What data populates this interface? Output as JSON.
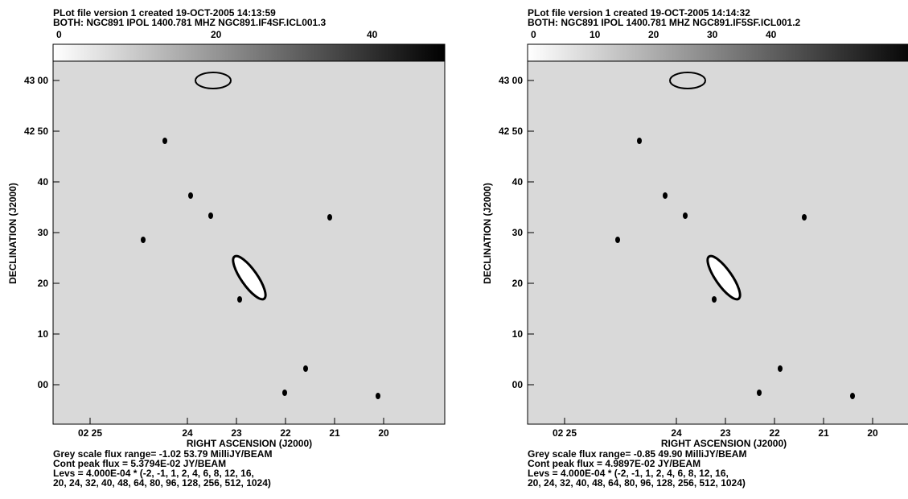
{
  "panels": [
    {
      "header": [
        "PLot file version 1  created 19-OCT-2005 14:13:59",
        "BOTH: NGC891  IPOL  1400.781 MHZ  NGC891.IF4SF.ICL001.3"
      ],
      "bar_labels": [
        "0",
        "20",
        "40"
      ],
      "y_labels": [
        "43 00",
        "42 50",
        "40",
        "30",
        "20",
        "10",
        "00"
      ],
      "x_labels": [
        "02 25",
        "24",
        "23",
        "22",
        "21",
        "20"
      ],
      "x_title": "RIGHT ASCENSION (J2000)",
      "y_title": "DECLINATION (J2000)",
      "footer": [
        "Grey scale flux range= -1.02 53.79 MilliJY/BEAM",
        "Cont peak flux =  5.3794E-02 JY/BEAM",
        "Levs = 4.000E-04 * (-2, -1, 1, 2, 4, 6, 8, 12, 16,",
        "20, 24, 32, 40, 48, 64, 80, 96, 128, 256, 512, 1024)"
      ]
    },
    {
      "header": [
        "PLot file version 1  created 19-OCT-2005 14:14:32",
        "BOTH: NGC891  IPOL  1400.781 MHZ  NGC891.IF5SF.ICL001.2"
      ],
      "bar_labels": [
        "0",
        "10",
        "20",
        "30",
        "40"
      ],
      "y_labels": [
        "43 00",
        "42 50",
        "40",
        "30",
        "20",
        "10",
        "00"
      ],
      "x_labels": [
        "02 25",
        "24",
        "23",
        "22",
        "21",
        "20"
      ],
      "x_title": "RIGHT ASCENSION (J2000)",
      "y_title": "DECLINATION (J2000)",
      "footer": [
        "Grey scale flux range= -0.85 49.90 MilliJY/BEAM",
        "Cont peak flux =  4.9897E-02 JY/BEAM",
        "Levs = 4.000E-04 * (-2, -1, 1, 2, 4, 6, 8, 12, 16,",
        "20, 24, 32, 40, 48, 64, 80, 96, 128, 256, 512, 1024)"
      ]
    }
  ]
}
